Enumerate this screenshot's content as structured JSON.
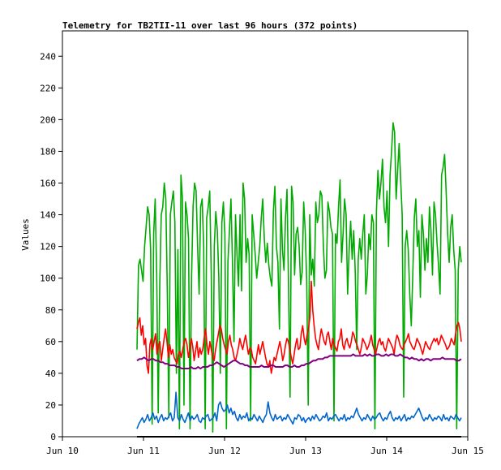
{
  "chart_data": {
    "type": "line",
    "title": "Telemetry for TB2TII-11 over last 96 hours (372 points)",
    "xlabel": "",
    "ylabel": "Values",
    "xlim": [
      "Jun 10",
      "Jun 15"
    ],
    "ylim": [
      0,
      256
    ],
    "x_ticks": [
      "Jun 10",
      "Jun 11",
      "Jun 12",
      "Jun 13",
      "Jun 14",
      "Jun 15"
    ],
    "y_ticks": [
      0,
      20,
      40,
      60,
      80,
      100,
      120,
      140,
      160,
      180,
      200,
      220,
      240
    ],
    "grid": false,
    "legend": "none",
    "x_start_day": 10.92,
    "x_end_day": 14.92,
    "series": [
      {
        "color": "#00aa00",
        "values": [
          55,
          108,
          112,
          105,
          98,
          120,
          132,
          145,
          140,
          118,
          8,
          128,
          150,
          102,
          15,
          95,
          140,
          145,
          160,
          150,
          92,
          12,
          140,
          148,
          155,
          135,
          40,
          118,
          5,
          165,
          150,
          20,
          148,
          140,
          125,
          5,
          100,
          145,
          160,
          155,
          120,
          90,
          145,
          150,
          120,
          5,
          138,
          145,
          155,
          102,
          3,
          120,
          142,
          130,
          100,
          40,
          135,
          148,
          128,
          5,
          110,
          130,
          150,
          110,
          60,
          140,
          115,
          95,
          140,
          92,
          160,
          150,
          110,
          125,
          115,
          10,
          140,
          128,
          115,
          100,
          110,
          120,
          138,
          150,
          125,
          110,
          122,
          108,
          100,
          95,
          142,
          158,
          120,
          110,
          68,
          150,
          118,
          105,
          138,
          156,
          95,
          25,
          158,
          148,
          102,
          128,
          132,
          120,
          96,
          104,
          148,
          130,
          98,
          20,
          140,
          102,
          112,
          95,
          148,
          135,
          140,
          155,
          152,
          120,
          100,
          105,
          148,
          142,
          132,
          128,
          10,
          128,
          122,
          145,
          162,
          110,
          128,
          150,
          140,
          90,
          118,
          136,
          112,
          130,
          105,
          55,
          112,
          125,
          112,
          128,
          140,
          90,
          102,
          128,
          118,
          140,
          135,
          5,
          142,
          168,
          150,
          160,
          175,
          145,
          135,
          155,
          120,
          165,
          180,
          198,
          192,
          150,
          168,
          185,
          162,
          140,
          25,
          120,
          130,
          118,
          90,
          70,
          102,
          138,
          150,
          120,
          130,
          88,
          140,
          128,
          105,
          125,
          110,
          145,
          130,
          102,
          148,
          140,
          122,
          108,
          90,
          165,
          170,
          178,
          155,
          128,
          110,
          132,
          140,
          118,
          105,
          5,
          105,
          120,
          110
        ],
        "range_check": "0-200"
      },
      {
        "color": "#ff0000",
        "values": [
          68,
          72,
          75,
          64,
          70,
          58,
          62,
          45,
          40,
          58,
          62,
          55,
          60,
          65,
          52,
          58,
          60,
          48,
          55,
          62,
          68,
          60,
          50,
          58,
          52,
          55,
          50,
          48,
          46,
          52,
          54,
          50,
          55,
          60,
          62,
          58,
          50,
          55,
          62,
          57,
          48,
          54,
          60,
          50,
          56,
          52,
          55,
          62,
          68,
          58,
          52,
          60,
          55,
          50,
          48,
          55,
          60,
          65,
          70,
          68,
          62,
          58,
          55,
          52,
          60,
          64,
          58,
          55,
          50,
          48,
          52,
          56,
          62,
          58,
          55,
          60,
          64,
          58,
          52,
          56,
          55,
          50,
          48,
          46,
          52,
          58,
          52,
          56,
          60,
          55,
          50,
          46,
          44,
          48,
          40,
          45,
          50,
          48,
          52,
          56,
          60,
          55,
          48,
          52,
          58,
          62,
          60,
          55,
          50,
          46,
          52,
          58,
          62,
          55,
          56,
          65,
          70,
          62,
          58,
          64,
          68,
          75,
          98,
          80,
          70,
          62,
          58,
          55,
          62,
          68,
          64,
          60,
          58,
          64,
          66,
          60,
          55,
          62,
          58,
          56,
          54,
          60,
          62,
          68,
          58,
          55,
          60,
          62,
          58,
          56,
          60,
          66,
          64,
          60,
          58,
          55,
          52,
          56,
          62,
          60,
          58,
          55,
          57,
          60,
          64,
          58,
          55,
          52,
          56,
          60,
          62,
          58,
          60,
          56,
          54,
          58,
          62,
          60,
          58,
          56,
          52,
          60,
          64,
          62,
          58,
          56,
          55,
          58,
          60,
          62,
          65,
          60,
          58,
          56,
          55,
          58,
          62,
          60,
          58,
          55,
          52,
          56,
          60,
          58,
          56,
          55,
          58,
          60,
          62,
          60,
          62,
          58,
          60,
          64,
          62,
          60,
          58,
          55,
          56,
          58,
          62,
          60,
          58,
          65,
          70,
          72,
          68,
          60
        ],
        "range_check": "35-97"
      },
      {
        "color": "#800080",
        "values": [
          48,
          49,
          49,
          50,
          49,
          48,
          49,
          49,
          48,
          48,
          47,
          47,
          46,
          46,
          45,
          45,
          45,
          44,
          44,
          43,
          43,
          43,
          43,
          44,
          43,
          43,
          44,
          43,
          44,
          44,
          44,
          45,
          45,
          46,
          47,
          46,
          45,
          44,
          45,
          46,
          47,
          48,
          48,
          47,
          46,
          46,
          45,
          45,
          44,
          44,
          44,
          44,
          44,
          45,
          44,
          44,
          44,
          45,
          45,
          44,
          44,
          44,
          44,
          45,
          45,
          44,
          44,
          45,
          44,
          44,
          45,
          45,
          46,
          46,
          47,
          48,
          48,
          49,
          49,
          49,
          50,
          50,
          51,
          51,
          51,
          51,
          51,
          51,
          51,
          51,
          51,
          51,
          52,
          51,
          51,
          51,
          51,
          52,
          51,
          52,
          51,
          51,
          52,
          52,
          51,
          51,
          52,
          51,
          52,
          52,
          51,
          51,
          52,
          51,
          50,
          50,
          49,
          50,
          49,
          49,
          48,
          49,
          48,
          49,
          49,
          48,
          49,
          49,
          49,
          49,
          50,
          49,
          49,
          49,
          49,
          49,
          48,
          48,
          49
        ],
        "range_check": "42-55"
      },
      {
        "color": "#0066cc",
        "values": [
          5,
          8,
          10,
          12,
          9,
          11,
          14,
          10,
          12,
          15,
          11,
          13,
          9,
          12,
          14,
          10,
          12,
          11,
          13,
          15,
          10,
          12,
          28,
          12,
          10,
          14,
          11,
          9,
          12,
          15,
          10,
          13,
          11,
          12,
          14,
          10,
          9,
          12,
          11,
          13,
          14,
          10,
          11,
          12,
          15,
          10,
          20,
          22,
          18,
          16,
          17,
          20,
          15,
          18,
          14,
          16,
          12,
          10,
          14,
          11,
          13,
          12,
          15,
          10,
          12,
          11,
          14,
          12,
          10,
          13,
          11,
          9,
          12,
          14,
          22,
          15,
          12,
          10,
          14,
          11,
          12,
          13,
          10,
          12,
          11,
          14,
          12,
          10,
          8,
          12,
          11,
          14,
          13,
          10,
          12,
          9,
          11,
          12,
          10,
          13,
          11,
          14,
          12,
          10,
          11,
          13,
          12,
          15,
          10,
          12,
          11,
          13,
          14,
          12,
          10,
          12,
          11,
          14,
          10,
          12,
          11,
          13,
          12,
          15,
          18,
          14,
          12,
          10,
          12,
          11,
          14,
          12,
          10,
          13,
          11,
          12,
          14,
          15,
          12,
          10,
          12,
          11,
          14,
          16,
          12,
          10,
          12,
          11,
          13,
          10,
          12,
          14,
          10,
          12,
          11,
          13,
          12,
          14,
          16,
          18,
          15,
          12,
          10,
          12,
          11,
          14,
          12,
          10,
          12,
          11,
          13,
          12,
          10,
          14,
          11,
          12,
          10,
          13,
          12,
          11,
          14,
          12,
          10,
          12
        ],
        "range_check": "0-30"
      }
    ]
  }
}
